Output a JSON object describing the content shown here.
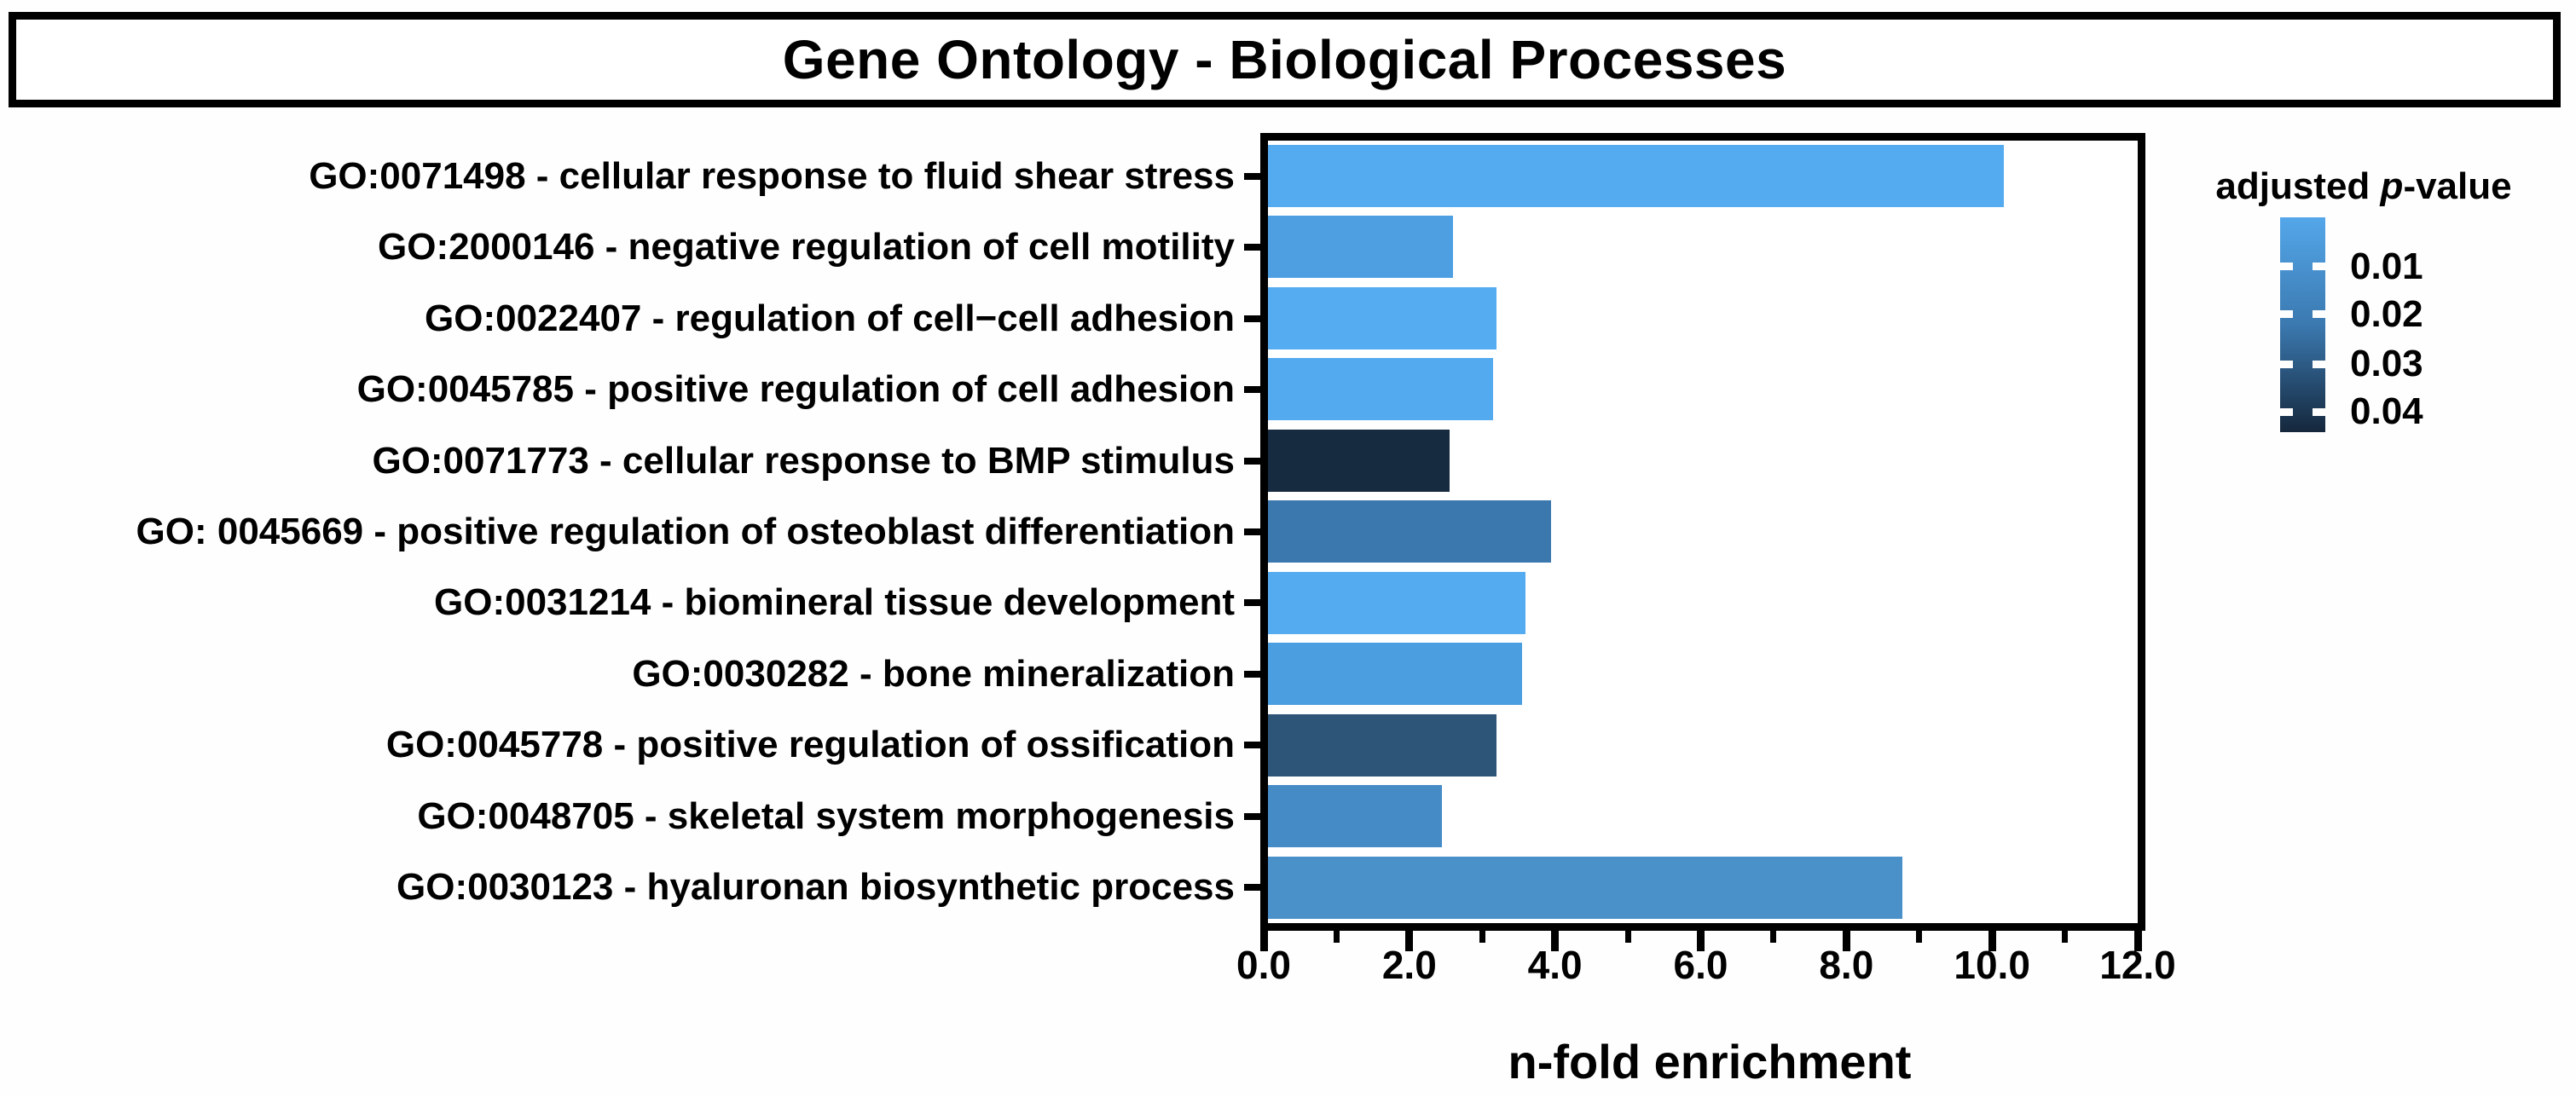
{
  "title": "Gene Ontology - Biological Processes",
  "chart_data": {
    "type": "bar",
    "orientation": "horizontal",
    "title": "Gene Ontology - Biological Processes",
    "xlabel": "n-fold enrichment",
    "ylabel": "",
    "xlim": [
      0,
      12
    ],
    "grid": false,
    "x_major_tick_labels": [
      "0.0",
      "2.0",
      "4.0",
      "6.0",
      "8.0",
      "10.0",
      "12.0"
    ],
    "x_major_tick_values": [
      0,
      2,
      4,
      6,
      8,
      10,
      12
    ],
    "x_minor_tick_values": [
      1,
      3,
      5,
      7,
      9,
      11
    ],
    "categories": [
      "GO:0071498 - cellular response to fluid shear stress",
      "GO:2000146 - negative regulation of cell motility",
      "GO:0022407 - regulation of cell−cell adhesion",
      "GO:0045785 - positive regulation of cell adhesion",
      "GO:0071773 - cellular response to BMP stimulus",
      "GO: 0045669 - positive regulation of osteoblast differentiation",
      "GO:0031214 - biomineral tissue development",
      "GO:0030282 - bone mineralization",
      "GO:0045778 - positive regulation of ossification",
      "GO:0048705 - skeletal system morphogenesis",
      "GO:0030123 - hyaluronan biosynthetic process"
    ],
    "values": [
      10.15,
      2.55,
      3.15,
      3.1,
      2.5,
      3.9,
      3.55,
      3.5,
      3.15,
      2.4,
      8.75
    ],
    "bar_colors": [
      "#55abf0",
      "#4d9fe2",
      "#56acf1",
      "#54aaef",
      "#162a40",
      "#3a78ae",
      "#55abf0",
      "#4b9edf",
      "#2d5578",
      "#458bc6",
      "#4a90c9"
    ],
    "colorbar_legend": {
      "title": "adjusted p-value",
      "title_parts": {
        "prefix": "adjusted ",
        "italic": "p",
        "suffix": "-value"
      },
      "tick_labels": [
        "0.01",
        "0.02",
        "0.03",
        "0.04"
      ],
      "gradient_top_color": "#54a7ea",
      "gradient_mid_color": "#3b79b0",
      "gradient_bottom_color": "#15273c"
    }
  }
}
